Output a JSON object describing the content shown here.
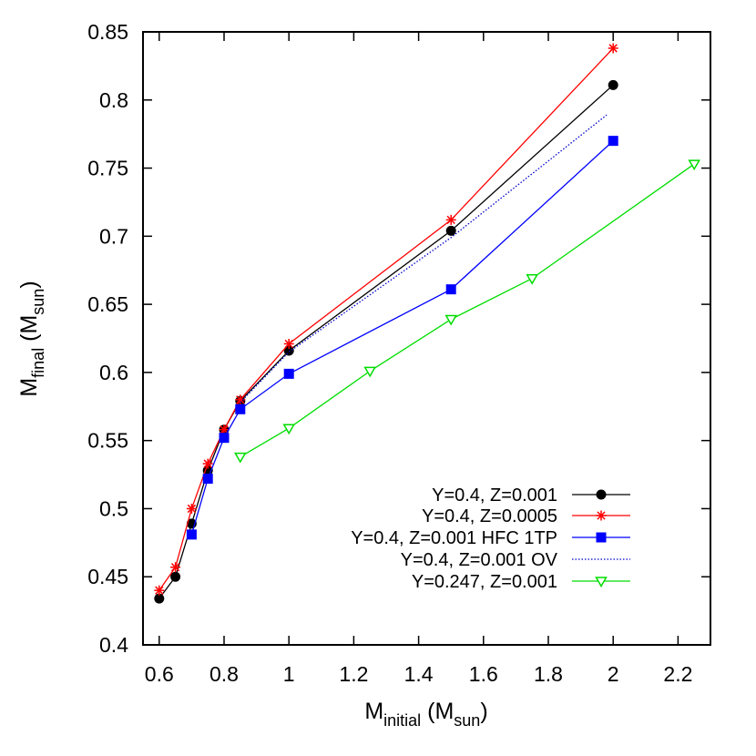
{
  "chart_data": {
    "type": "line",
    "title": "",
    "xlabel": {
      "main": "M",
      "sub": "initial",
      "unit_open": " (M",
      "unit_sub": "sun",
      "unit_close": ")"
    },
    "ylabel": {
      "main": "M",
      "sub": "final",
      "unit_open": " (M",
      "unit_sub": "sun",
      "unit_close": ")"
    },
    "xlim": [
      0.55,
      2.3
    ],
    "ylim": [
      0.4,
      0.85
    ],
    "xticks": [
      {
        "v": 0.6,
        "label": "0.6"
      },
      {
        "v": 0.8,
        "label": "0.8"
      },
      {
        "v": 1.0,
        "label": "1"
      },
      {
        "v": 1.2,
        "label": "1.2"
      },
      {
        "v": 1.4,
        "label": "1.4"
      },
      {
        "v": 1.6,
        "label": "1.6"
      },
      {
        "v": 1.8,
        "label": "1.8"
      },
      {
        "v": 2.0,
        "label": "2"
      },
      {
        "v": 2.2,
        "label": "2.2"
      }
    ],
    "yticks": [
      {
        "v": 0.4,
        "label": "0.4"
      },
      {
        "v": 0.45,
        "label": "0.45"
      },
      {
        "v": 0.5,
        "label": "0.5"
      },
      {
        "v": 0.55,
        "label": "0.55"
      },
      {
        "v": 0.6,
        "label": "0.6"
      },
      {
        "v": 0.65,
        "label": "0.65"
      },
      {
        "v": 0.7,
        "label": "0.7"
      },
      {
        "v": 0.75,
        "label": "0.75"
      },
      {
        "v": 0.8,
        "label": "0.8"
      },
      {
        "v": 0.85,
        "label": "0.85"
      }
    ],
    "grid": false,
    "legend_position": "bottom-right",
    "series": [
      {
        "name": "Y=0.4, Z=0.001",
        "color": "#000000",
        "marker": "circle",
        "dash": "",
        "x": [
          0.6,
          0.65,
          0.7,
          0.75,
          0.8,
          0.85,
          1.0,
          1.5,
          2.0
        ],
        "y": [
          0.434,
          0.45,
          0.489,
          0.528,
          0.558,
          0.579,
          0.616,
          0.704,
          0.811
        ]
      },
      {
        "name": "Y=0.4, Z=0.0005",
        "color": "#ff0000",
        "marker": "asterisk",
        "dash": "",
        "x": [
          0.6,
          0.65,
          0.7,
          0.75,
          0.8,
          0.85,
          1.0,
          1.5,
          2.0
        ],
        "y": [
          0.44,
          0.457,
          0.5,
          0.533,
          0.558,
          0.58,
          0.621,
          0.712,
          0.838
        ]
      },
      {
        "name": "Y=0.4, Z=0.001 HFC 1TP",
        "color": "#0000ff",
        "marker": "square",
        "dash": "",
        "x": [
          0.7,
          0.75,
          0.8,
          0.85,
          1.0,
          1.5,
          2.0
        ],
        "y": [
          0.481,
          0.522,
          0.552,
          0.573,
          0.599,
          0.661,
          0.77
        ]
      },
      {
        "name": "Y=0.4, Z=0.001 OV",
        "color": "#0000cc",
        "marker": "none",
        "dash": "1.5,2",
        "x": [
          0.85,
          1.0,
          1.5,
          1.98
        ],
        "y": [
          0.578,
          0.615,
          0.699,
          0.789
        ]
      },
      {
        "name": "Y=0.247, Z=0.001",
        "color": "#00dd00",
        "marker": "triangle-down",
        "dash": "",
        "x": [
          0.85,
          1.0,
          1.25,
          1.5,
          1.75,
          2.25
        ],
        "y": [
          0.538,
          0.559,
          0.601,
          0.639,
          0.669,
          0.753
        ]
      }
    ]
  }
}
